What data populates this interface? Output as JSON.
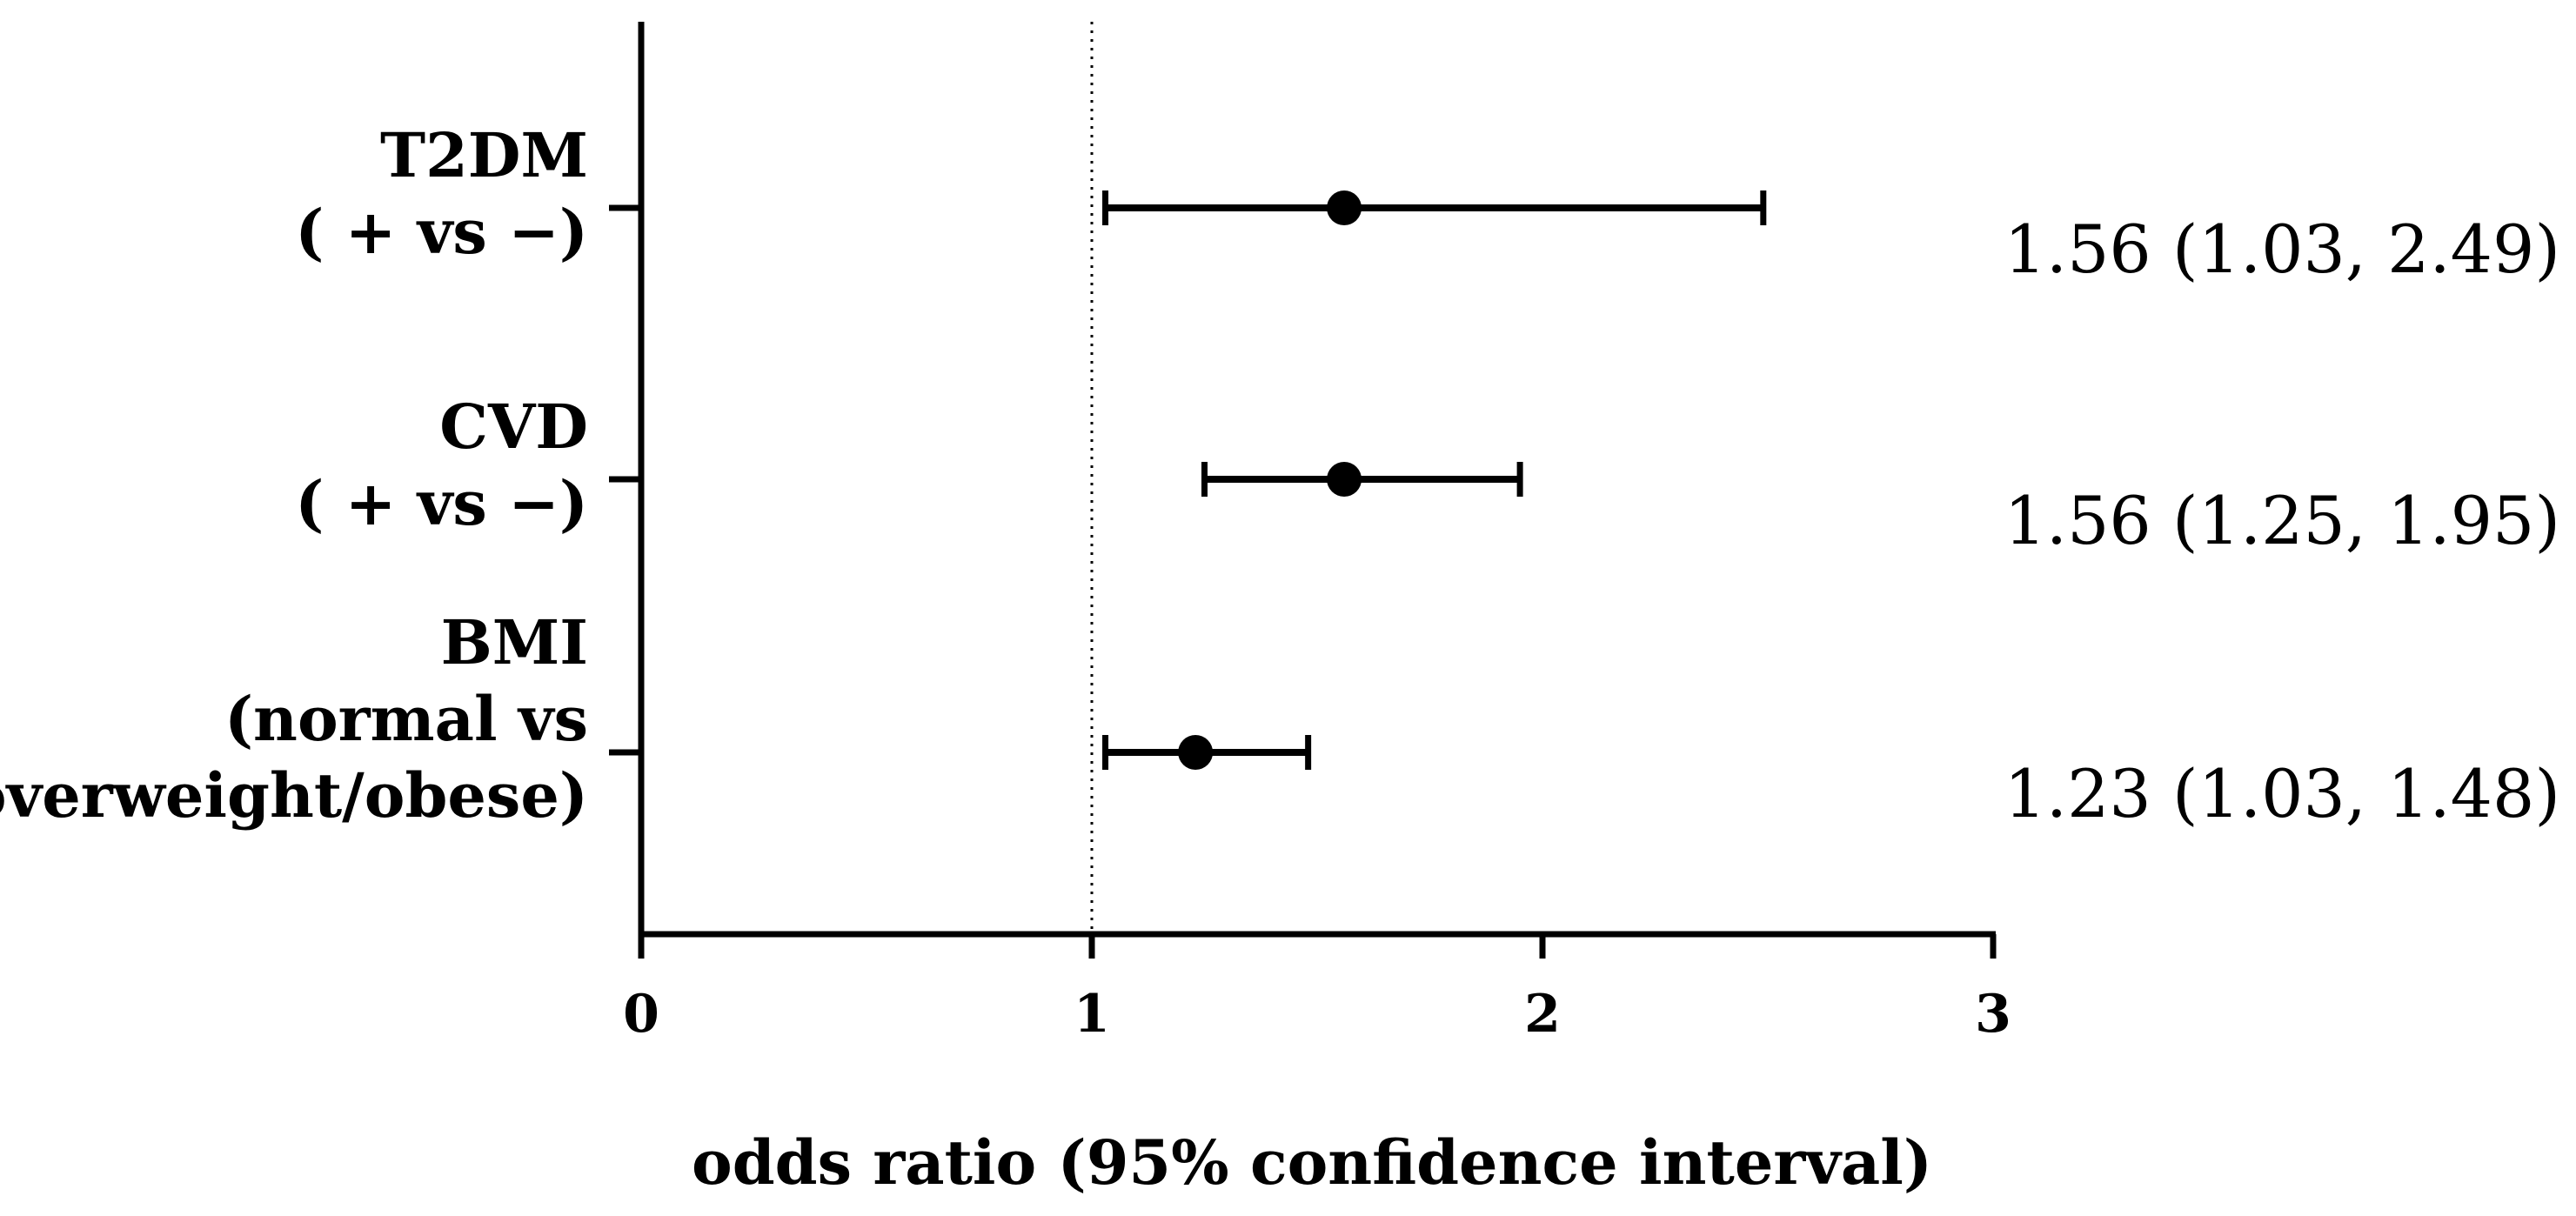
{
  "chart_data": {
    "type": "forest",
    "xlabel": "odds ratio (95% confidence interval)",
    "ylabel": "",
    "title": "",
    "xlim": [
      0,
      3
    ],
    "x_ticks": [
      0,
      1,
      2,
      3
    ],
    "x_tick_labels": [
      "0",
      "1",
      "2",
      "3"
    ],
    "reference_line": 1,
    "reference_line_style": "dotted",
    "colors": {
      "ink": "#000000",
      "background": "#ffffff"
    },
    "rows": [
      {
        "label_lines": [
          "T2DM",
          "( +  vs  −)"
        ],
        "estimate": 1.56,
        "ci_low": 1.03,
        "ci_high": 2.49,
        "value_text": "1.56 (1.03, 2.49)"
      },
      {
        "label_lines": [
          "CVD",
          "( +  vs  −)"
        ],
        "estimate": 1.56,
        "ci_low": 1.25,
        "ci_high": 1.95,
        "value_text": "1.56 (1.25, 1.95)"
      },
      {
        "label_lines": [
          "BMI",
          "(normal vs",
          "overweight/obese)"
        ],
        "estimate": 1.23,
        "ci_low": 1.03,
        "ci_high": 1.48,
        "value_text": "1.23 (1.03, 1.48)"
      }
    ]
  }
}
